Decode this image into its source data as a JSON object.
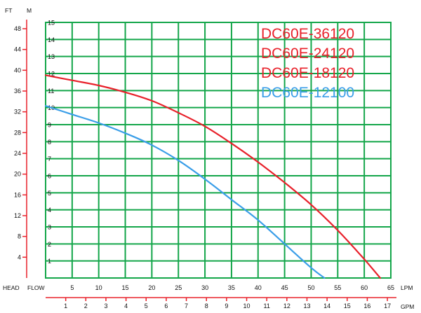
{
  "chart_data": {
    "type": "line",
    "units": {
      "ft": "FT",
      "m": "M",
      "head": "HEAD",
      "flow": "FLOW",
      "lpm": "LPM",
      "gpm": "GPM"
    },
    "head_m_ticks": [
      1,
      2,
      3,
      4,
      5,
      6,
      7,
      8,
      9,
      10,
      11,
      12,
      13,
      14,
      15
    ],
    "head_ft_ticks": [
      4,
      8,
      12,
      16,
      20,
      24,
      28,
      32,
      36,
      40,
      44,
      48
    ],
    "flow_lpm_ticks": [
      5,
      10,
      15,
      20,
      25,
      30,
      35,
      40,
      45,
      50,
      55,
      60,
      65
    ],
    "flow_gpm_ticks": [
      1,
      2,
      3,
      4,
      5,
      6,
      7,
      8,
      9,
      10,
      11,
      12,
      13,
      14,
      15,
      16,
      17
    ],
    "xlim_lpm": [
      0,
      65
    ],
    "ylim_m": [
      0,
      15
    ],
    "grid": true,
    "legend_position": "top-right",
    "legend": [
      {
        "label": "DC60E-36120",
        "color": "#e8202a"
      },
      {
        "label": "DC60E-24120",
        "color": "#e8202a"
      },
      {
        "label": "DC60E-18120",
        "color": "#e8202a"
      },
      {
        "label": "DC60E-12100",
        "color": "#3a9ee8"
      }
    ],
    "series": [
      {
        "color": "#e8202a",
        "x_lpm": [
          0,
          5,
          10,
          15,
          20,
          25,
          30,
          35,
          40,
          45,
          50,
          55,
          60,
          63
        ],
        "y_m": [
          11.9,
          11.6,
          11.3,
          10.9,
          10.4,
          9.7,
          8.9,
          7.9,
          6.8,
          5.6,
          4.3,
          2.8,
          1.1,
          0
        ]
      },
      {
        "color": "#3a9ee8",
        "x_lpm": [
          0,
          5,
          10,
          15,
          20,
          25,
          30,
          35,
          40,
          45,
          50,
          52.5
        ],
        "y_m": [
          10.1,
          9.6,
          9.1,
          8.5,
          7.8,
          6.9,
          5.8,
          4.6,
          3.4,
          2.0,
          0.6,
          0
        ]
      }
    ],
    "colors": {
      "grid": "#14a64a",
      "axis": "#e8202a",
      "plot_bg": "#ffffff"
    }
  }
}
